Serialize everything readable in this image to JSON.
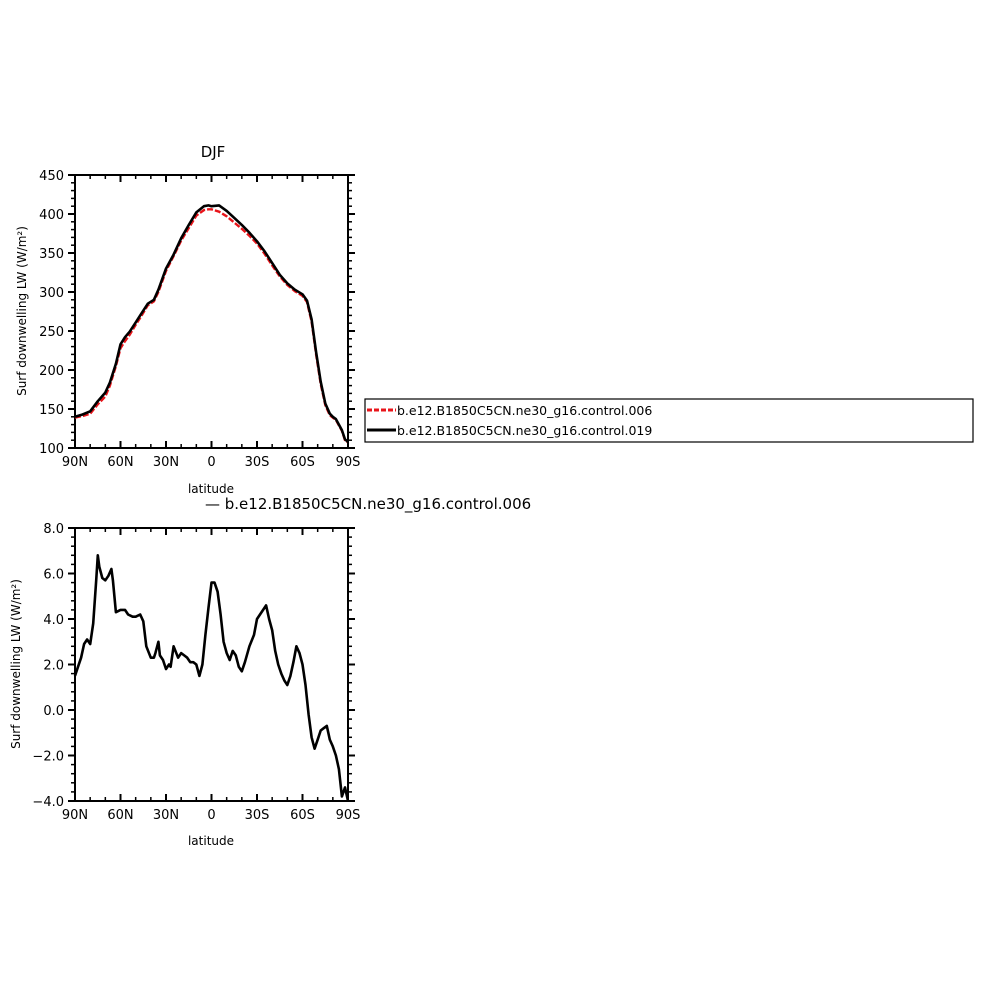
{
  "colors": {
    "control_006": "#e8141a",
    "control_019": "#000000",
    "difference": "#000000"
  },
  "chart_data": [
    {
      "type": "line",
      "title": "DJF",
      "xlabel": "latitude",
      "ylabel": "Surf downwelling LW (W/m²)",
      "xlim": [
        90,
        -90
      ],
      "ylim": [
        100,
        450
      ],
      "xticks": [
        90,
        60,
        30,
        0,
        -30,
        -60,
        -90
      ],
      "xtick_labels": [
        "90N",
        "60N",
        "30N",
        "0",
        "30S",
        "60S",
        "90S"
      ],
      "yticks": [
        100,
        150,
        200,
        250,
        300,
        350,
        400,
        450
      ],
      "ytick_labels": [
        "100",
        "150",
        "200",
        "250",
        "300",
        "350",
        "400",
        "450"
      ],
      "legend": "right",
      "series": [
        {
          "name": "b.e12.B1850C5CN.ne30_g16.control.006",
          "color": "#e8141a",
          "style": "dashed",
          "x": [
            90,
            85,
            80,
            75,
            70,
            67,
            63,
            60,
            57,
            54,
            50,
            46,
            42,
            38,
            35,
            30,
            25,
            20,
            15,
            10,
            5,
            2,
            0,
            -5,
            -10,
            -15,
            -20,
            -25,
            -30,
            -35,
            -40,
            -45,
            -50,
            -55,
            -60,
            -63,
            -66,
            -69,
            -72,
            -75,
            -78,
            -80,
            -82,
            -84,
            -86,
            -88,
            -90
          ],
          "y": [
            139,
            141,
            144,
            156,
            166,
            180,
            205,
            228,
            237,
            245,
            258,
            270,
            283,
            288,
            300,
            327,
            346,
            366,
            382,
            398,
            405,
            406,
            406,
            403,
            397,
            389,
            381,
            372,
            362,
            349,
            334,
            320,
            309,
            301,
            295,
            287,
            262,
            220,
            182,
            155,
            142,
            139,
            136,
            129,
            122,
            110,
            107
          ]
        },
        {
          "name": "b.e12.B1850C5CN.ne30_g16.control.019",
          "color": "#000000",
          "style": "solid",
          "x": [
            90,
            85,
            80,
            75,
            70,
            67,
            63,
            60,
            57,
            54,
            50,
            46,
            42,
            38,
            35,
            30,
            25,
            20,
            15,
            10,
            5,
            2,
            0,
            -5,
            -10,
            -15,
            -20,
            -25,
            -30,
            -35,
            -40,
            -45,
            -50,
            -55,
            -60,
            -63,
            -66,
            -69,
            -72,
            -75,
            -78,
            -80,
            -82,
            -84,
            -86,
            -88,
            -90
          ],
          "y": [
            140,
            143,
            147,
            160,
            171,
            184,
            208,
            233,
            242,
            249,
            261,
            273,
            285,
            290,
            303,
            330,
            348,
            369,
            386,
            402,
            410,
            411,
            410,
            411,
            404,
            395,
            386,
            376,
            365,
            352,
            337,
            322,
            311,
            303,
            297,
            289,
            265,
            223,
            185,
            157,
            144,
            140,
            137,
            130,
            123,
            111,
            108
          ]
        }
      ]
    },
    {
      "type": "line",
      "title": "— b.e12.B1850C5CN.ne30_g16.control.006",
      "xlabel": "latitude",
      "ylabel": "Surf downwelling LW (W/m²)",
      "xlim": [
        90,
        -90
      ],
      "ylim": [
        -4.0,
        8.0
      ],
      "xticks": [
        90,
        60,
        30,
        0,
        -30,
        -60,
        -90
      ],
      "xtick_labels": [
        "90N",
        "60N",
        "30N",
        "0",
        "30S",
        "60S",
        "90S"
      ],
      "yticks": [
        -4.0,
        -2.0,
        0.0,
        2.0,
        4.0,
        6.0,
        8.0
      ],
      "ytick_labels": [
        "−4.0",
        "−2.0",
        "0.0",
        "2.0",
        "4.0",
        "6.0",
        "8.0"
      ],
      "series": [
        {
          "color": "#000000",
          "style": "solid",
          "x": [
            90,
            88,
            86,
            84,
            82,
            80,
            78,
            76,
            75,
            74,
            72,
            70,
            68,
            66,
            65,
            63,
            60,
            57,
            55,
            52,
            50,
            47,
            45,
            43,
            40,
            38,
            37,
            35,
            34,
            32,
            30,
            28,
            27,
            25,
            22,
            20,
            18,
            16,
            14,
            12,
            10,
            8,
            6,
            4,
            2,
            0,
            -2,
            -4,
            -6,
            -8,
            -10,
            -12,
            -14,
            -16,
            -18,
            -20,
            -22,
            -25,
            -28,
            -30,
            -32,
            -34,
            -36,
            -38,
            -40,
            -42,
            -44,
            -46,
            -48,
            -50,
            -52,
            -54,
            -56,
            -58,
            -60,
            -62,
            -64,
            -66,
            -68,
            -70,
            -72,
            -74,
            -76,
            -78,
            -80,
            -82,
            -84,
            -86,
            -88,
            -90
          ],
          "y": [
            1.5,
            1.9,
            2.3,
            2.9,
            3.1,
            2.9,
            3.8,
            5.7,
            6.8,
            6.3,
            5.8,
            5.7,
            5.9,
            6.2,
            5.7,
            4.3,
            4.4,
            4.4,
            4.2,
            4.1,
            4.1,
            4.2,
            3.9,
            2.8,
            2.3,
            2.3,
            2.5,
            3.0,
            2.4,
            2.2,
            1.8,
            2.0,
            1.9,
            2.8,
            2.3,
            2.5,
            2.4,
            2.3,
            2.1,
            2.1,
            2.0,
            1.5,
            2.0,
            3.3,
            4.5,
            5.6,
            5.6,
            5.2,
            4.2,
            3.0,
            2.5,
            2.2,
            2.6,
            2.4,
            1.9,
            1.7,
            2.1,
            2.8,
            3.3,
            4.0,
            4.2,
            4.4,
            4.6,
            4.0,
            3.5,
            2.6,
            2.0,
            1.6,
            1.3,
            1.1,
            1.5,
            2.1,
            2.8,
            2.5,
            2.0,
            1.1,
            -0.2,
            -1.2,
            -1.7,
            -1.3,
            -0.9,
            -0.8,
            -0.7,
            -1.3,
            -1.6,
            -2.0,
            -2.6,
            -3.8,
            -3.4,
            -4.0
          ]
        }
      ]
    }
  ]
}
